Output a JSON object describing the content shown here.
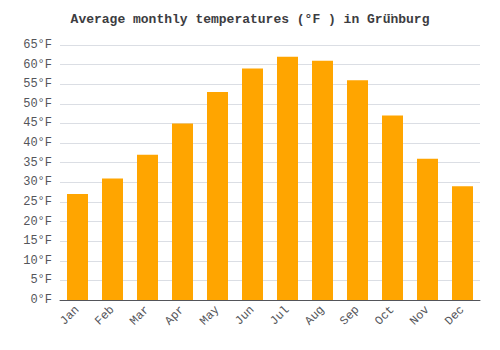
{
  "chart_data": {
    "type": "bar",
    "title": "Average monthly temperatures (°F ) in Grü̈nburg",
    "categories": [
      "Jan",
      "Feb",
      "Mar",
      "Apr",
      "May",
      "Jun",
      "Jul",
      "Aug",
      "Sep",
      "Oct",
      "Nov",
      "Dec"
    ],
    "values": [
      27,
      31,
      37,
      45,
      53,
      59,
      62,
      61,
      56,
      47,
      36,
      29
    ],
    "color": "#FFA500",
    "ylim": [
      0,
      65
    ],
    "yticks": [
      {
        "value": 0,
        "label": "0°F"
      },
      {
        "value": 5,
        "label": "5°F"
      },
      {
        "value": 10,
        "label": "10°F"
      },
      {
        "value": 15,
        "label": "15°F"
      },
      {
        "value": 20,
        "label": "20°F"
      },
      {
        "value": 25,
        "label": "25°F"
      },
      {
        "value": 30,
        "label": "30°F"
      },
      {
        "value": 35,
        "label": "35°F"
      },
      {
        "value": 40,
        "label": "40°F"
      },
      {
        "value": 45,
        "label": "45°F"
      },
      {
        "value": 50,
        "label": "50°F"
      },
      {
        "value": 55,
        "label": "55°F"
      },
      {
        "value": 60,
        "label": "60°F"
      },
      {
        "value": 65,
        "label": "65°F"
      }
    ],
    "grid": true
  }
}
